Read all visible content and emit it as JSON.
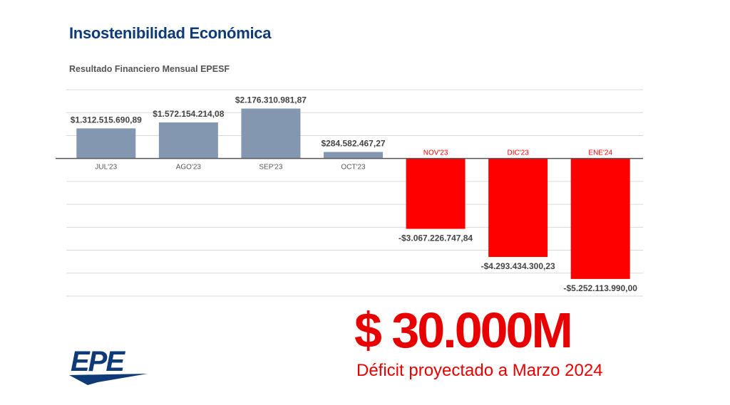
{
  "header": {
    "title": "Insostenibilidad Económica",
    "subtitle": "Resultado Financiero Mensual EPESF"
  },
  "highlight": {
    "amount": "$ 30.000M",
    "caption": "Déficit proyectado a Marzo 2024"
  },
  "logo": {
    "text": "EPE"
  },
  "colors": {
    "positive": "#8497b0",
    "negative": "#ff0000",
    "title": "#0e3a78",
    "accent": "#e80000"
  },
  "chart_data": {
    "type": "bar",
    "title": "Resultado Financiero Mensual EPESF",
    "categories": [
      "JUL'23",
      "AGO'23",
      "SEP'23",
      "OCT'23",
      "NOV'23",
      "DIC'23",
      "ENE'24"
    ],
    "values": [
      1312515690.89,
      1572154214.08,
      2176310981.87,
      284582467.27,
      -3067226747.84,
      -4293434300.23,
      -5252113990.0
    ],
    "labels": [
      "$1.312.515.690,89",
      "$1.572.154.214,08",
      "$2.176.310.981,87",
      "$284.582.467,27",
      "-$3.067.226.747,84",
      "-$4.293.434.300,23",
      "-$5.252.113.990,00"
    ],
    "xlabel": "",
    "ylabel": "",
    "ylim": [
      -6000000000,
      3000000000
    ],
    "grid": true,
    "legend": "none"
  }
}
